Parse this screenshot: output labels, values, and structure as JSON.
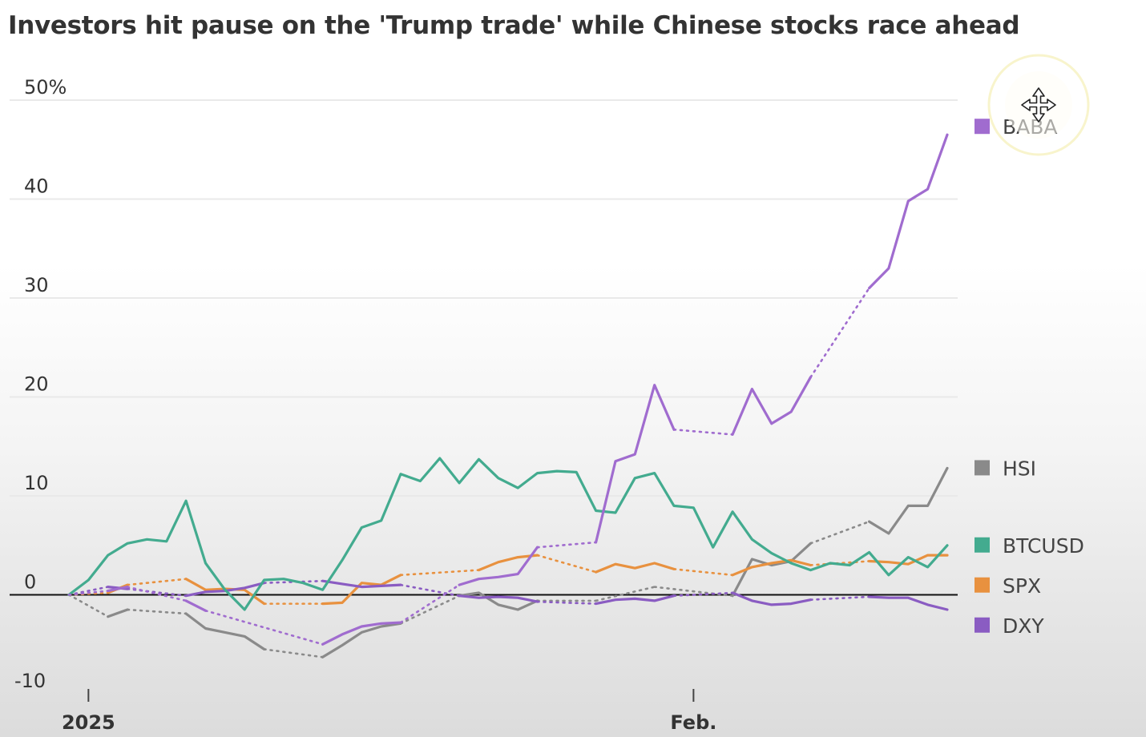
{
  "title": "Investors hit pause on the 'Trump trade' while Chinese stocks race ahead",
  "chart_data": {
    "type": "line",
    "title": "Investors hit pause on the 'Trump trade' while Chinese stocks race ahead",
    "xlabel": "",
    "ylabel": "",
    "y_unit": "%",
    "ylim": [
      -10,
      50
    ],
    "y_ticks": [
      {
        "value": 50,
        "label": "50%"
      },
      {
        "value": 40,
        "label": "40"
      },
      {
        "value": 30,
        "label": "30"
      },
      {
        "value": 20,
        "label": "20"
      },
      {
        "value": 10,
        "label": "10"
      },
      {
        "value": 0,
        "label": "0"
      },
      {
        "value": -10,
        "label": "-10"
      }
    ],
    "x_domain": [
      "2024-12-31",
      "2025-02-14"
    ],
    "x_ticks": [
      {
        "date": "2025-01-01",
        "label": "2025"
      },
      {
        "date": "2025-02-01",
        "label": "Feb."
      }
    ],
    "grid": true,
    "legend_position": "right",
    "gaps_note_style": "dotted lines connect non-trading days",
    "series": [
      {
        "name": "BABA",
        "color": "#a06ccf",
        "points": [
          [
            "2024-12-31",
            0
          ],
          [
            "2025-01-02",
            0.4
          ],
          [
            "2025-01-03",
            0.8
          ],
          [
            "2025-01-06",
            -0.6
          ],
          [
            "2025-01-07",
            -1.6
          ],
          [
            "2025-01-13",
            -5
          ],
          [
            "2025-01-14",
            -4
          ],
          [
            "2025-01-15",
            -3.2
          ],
          [
            "2025-01-16",
            -2.9
          ],
          [
            "2025-01-17",
            -2.8
          ],
          [
            "2025-01-20",
            1
          ],
          [
            "2025-01-21",
            1.6
          ],
          [
            "2025-01-22",
            1.8
          ],
          [
            "2025-01-23",
            2.1
          ],
          [
            "2025-01-24",
            4.8
          ],
          [
            "2025-01-27",
            5.3
          ],
          [
            "2025-01-28",
            13.5
          ],
          [
            "2025-01-29",
            14.2
          ],
          [
            "2025-01-30",
            21.2
          ],
          [
            "2025-01-31",
            16.7
          ],
          [
            "2025-02-03",
            16.2
          ],
          [
            "2025-02-04",
            20.8
          ],
          [
            "2025-02-05",
            17.3
          ],
          [
            "2025-02-06",
            18.5
          ],
          [
            "2025-02-07",
            22
          ],
          [
            "2025-02-10",
            31
          ],
          [
            "2025-02-11",
            33
          ],
          [
            "2025-02-12",
            39.8
          ],
          [
            "2025-02-13",
            41
          ],
          [
            "2025-02-14",
            46.5
          ]
        ]
      },
      {
        "name": "HSI",
        "color": "#8a8a8a",
        "points": [
          [
            "2024-12-31",
            0
          ],
          [
            "2025-01-02",
            -2.2
          ],
          [
            "2025-01-03",
            -1.5
          ],
          [
            "2025-01-06",
            -1.9
          ],
          [
            "2025-01-07",
            -3.4
          ],
          [
            "2025-01-08",
            -3.8
          ],
          [
            "2025-01-09",
            -4.2
          ],
          [
            "2025-01-10",
            -5.5
          ],
          [
            "2025-01-13",
            -6.3
          ],
          [
            "2025-01-14",
            -5.1
          ],
          [
            "2025-01-15",
            -3.8
          ],
          [
            "2025-01-16",
            -3.2
          ],
          [
            "2025-01-17",
            -2.9
          ],
          [
            "2025-01-20",
            -0.1
          ],
          [
            "2025-01-21",
            0.2
          ],
          [
            "2025-01-22",
            -1
          ],
          [
            "2025-01-23",
            -1.5
          ],
          [
            "2025-01-24",
            -0.6
          ],
          [
            "2025-01-27",
            -0.6
          ],
          [
            "2025-01-30",
            0.8
          ],
          [
            "2025-02-03",
            -0.1
          ],
          [
            "2025-02-04",
            3.6
          ],
          [
            "2025-02-05",
            3
          ],
          [
            "2025-02-06",
            3.4
          ],
          [
            "2025-02-07",
            5.2
          ],
          [
            "2025-02-10",
            7.4
          ],
          [
            "2025-02-11",
            6.2
          ],
          [
            "2025-02-12",
            9
          ],
          [
            "2025-02-13",
            9
          ],
          [
            "2025-02-14",
            12.8
          ]
        ]
      },
      {
        "name": "BTCUSD",
        "color": "#43ab8f",
        "points": [
          [
            "2024-12-31",
            0
          ],
          [
            "2025-01-01",
            1.5
          ],
          [
            "2025-01-02",
            4
          ],
          [
            "2025-01-03",
            5.2
          ],
          [
            "2025-01-04",
            5.6
          ],
          [
            "2025-01-05",
            5.4
          ],
          [
            "2025-01-06",
            9.5
          ],
          [
            "2025-01-07",
            3.2
          ],
          [
            "2025-01-08",
            0.5
          ],
          [
            "2025-01-09",
            -1.5
          ],
          [
            "2025-01-10",
            1.5
          ],
          [
            "2025-01-11",
            1.6
          ],
          [
            "2025-01-12",
            1.2
          ],
          [
            "2025-01-13",
            0.5
          ],
          [
            "2025-01-14",
            3.5
          ],
          [
            "2025-01-15",
            6.8
          ],
          [
            "2025-01-16",
            7.5
          ],
          [
            "2025-01-17",
            12.2
          ],
          [
            "2025-01-18",
            11.5
          ],
          [
            "2025-01-19",
            13.8
          ],
          [
            "2025-01-20",
            11.3
          ],
          [
            "2025-01-21",
            13.7
          ],
          [
            "2025-01-22",
            11.8
          ],
          [
            "2025-01-23",
            10.8
          ],
          [
            "2025-01-24",
            12.3
          ],
          [
            "2025-01-25",
            12.5
          ],
          [
            "2025-01-26",
            12.4
          ],
          [
            "2025-01-27",
            8.5
          ],
          [
            "2025-01-28",
            8.3
          ],
          [
            "2025-01-29",
            11.8
          ],
          [
            "2025-01-30",
            12.3
          ],
          [
            "2025-01-31",
            9
          ],
          [
            "2025-02-01",
            8.8
          ],
          [
            "2025-02-02",
            4.8
          ],
          [
            "2025-02-03",
            8.4
          ],
          [
            "2025-02-04",
            5.6
          ],
          [
            "2025-02-05",
            4.2
          ],
          [
            "2025-02-06",
            3.2
          ],
          [
            "2025-02-07",
            2.5
          ],
          [
            "2025-02-08",
            3.2
          ],
          [
            "2025-02-09",
            3
          ],
          [
            "2025-02-10",
            4.3
          ],
          [
            "2025-02-11",
            2
          ],
          [
            "2025-02-12",
            3.8
          ],
          [
            "2025-02-13",
            2.8
          ],
          [
            "2025-02-14",
            5
          ]
        ]
      },
      {
        "name": "SPX",
        "color": "#e8913f",
        "points": [
          [
            "2024-12-31",
            0
          ],
          [
            "2025-01-02",
            0.2
          ],
          [
            "2025-01-03",
            1
          ],
          [
            "2025-01-06",
            1.6
          ],
          [
            "2025-01-07",
            0.5
          ],
          [
            "2025-01-08",
            0.6
          ],
          [
            "2025-01-09",
            0.5
          ],
          [
            "2025-01-10",
            -0.9
          ],
          [
            "2025-01-13",
            -0.9
          ],
          [
            "2025-01-14",
            -0.8
          ],
          [
            "2025-01-15",
            1.2
          ],
          [
            "2025-01-16",
            1
          ],
          [
            "2025-01-17",
            2
          ],
          [
            "2025-01-21",
            2.5
          ],
          [
            "2025-01-22",
            3.3
          ],
          [
            "2025-01-23",
            3.8
          ],
          [
            "2025-01-24",
            4
          ],
          [
            "2025-01-27",
            2.3
          ],
          [
            "2025-01-28",
            3.1
          ],
          [
            "2025-01-29",
            2.7
          ],
          [
            "2025-01-30",
            3.2
          ],
          [
            "2025-01-31",
            2.6
          ],
          [
            "2025-02-03",
            2
          ],
          [
            "2025-02-04",
            2.8
          ],
          [
            "2025-02-05",
            3.2
          ],
          [
            "2025-02-06",
            3.5
          ],
          [
            "2025-02-07",
            3
          ],
          [
            "2025-02-10",
            3.4
          ],
          [
            "2025-02-11",
            3.3
          ],
          [
            "2025-02-12",
            3.1
          ],
          [
            "2025-02-13",
            4
          ],
          [
            "2025-02-14",
            4
          ]
        ]
      },
      {
        "name": "DXY",
        "color": "#8a5cc2",
        "points": [
          [
            "2024-12-31",
            0
          ],
          [
            "2025-01-02",
            0.8
          ],
          [
            "2025-01-03",
            0.6
          ],
          [
            "2025-01-06",
            -0.1
          ],
          [
            "2025-01-07",
            0.3
          ],
          [
            "2025-01-08",
            0.4
          ],
          [
            "2025-01-09",
            0.7
          ],
          [
            "2025-01-10",
            1.2
          ],
          [
            "2025-01-13",
            1.4
          ],
          [
            "2025-01-14",
            1.1
          ],
          [
            "2025-01-15",
            0.8
          ],
          [
            "2025-01-16",
            0.9
          ],
          [
            "2025-01-17",
            1
          ],
          [
            "2025-01-20",
            -0.1
          ],
          [
            "2025-01-21",
            -0.3
          ],
          [
            "2025-01-22",
            -0.2
          ],
          [
            "2025-01-23",
            -0.3
          ],
          [
            "2025-01-24",
            -0.7
          ],
          [
            "2025-01-27",
            -0.9
          ],
          [
            "2025-01-28",
            -0.5
          ],
          [
            "2025-01-29",
            -0.4
          ],
          [
            "2025-01-30",
            -0.6
          ],
          [
            "2025-01-31",
            -0.1
          ],
          [
            "2025-02-03",
            0.2
          ],
          [
            "2025-02-04",
            -0.6
          ],
          [
            "2025-02-05",
            -1
          ],
          [
            "2025-02-06",
            -0.9
          ],
          [
            "2025-02-07",
            -0.5
          ],
          [
            "2025-02-10",
            -0.2
          ],
          [
            "2025-02-11",
            -0.3
          ],
          [
            "2025-02-12",
            -0.3
          ],
          [
            "2025-02-13",
            -1
          ],
          [
            "2025-02-14",
            -1.5
          ]
        ]
      }
    ]
  }
}
